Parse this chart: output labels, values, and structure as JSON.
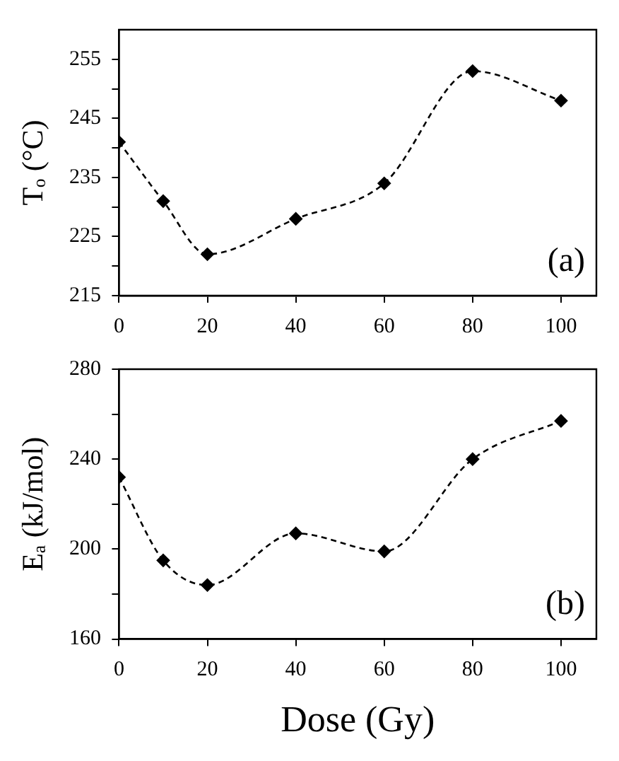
{
  "chart_data": [
    {
      "type": "line",
      "ylabel": "Tₒ (°C)",
      "annotations": [
        "(a)"
      ],
      "x": [
        0,
        10,
        20,
        40,
        60,
        80,
        100
      ],
      "xlim": [
        0,
        108
      ],
      "xticks": [
        0,
        20,
        40,
        60,
        80,
        100
      ],
      "ylim": [
        215,
        260
      ],
      "yticks": [
        215,
        {
          "value": 220,
          "label": null
        },
        225,
        {
          "value": 230,
          "label": null
        },
        235,
        {
          "value": 240,
          "label": null
        },
        245,
        {
          "value": 250,
          "label": null
        },
        255
      ],
      "series": [
        {
          "color": "#000000",
          "values": [
            241,
            231,
            222,
            228,
            234,
            253,
            248
          ]
        }
      ],
      "marker": "diamond",
      "line_style": "dashed",
      "grid": false,
      "legend": false
    },
    {
      "type": "line",
      "xlabel": "Dose (Gy)",
      "ylabel": "Eₐ (kJ/mol)",
      "annotations": [
        "(b)"
      ],
      "x": [
        0,
        10,
        20,
        40,
        60,
        80,
        100
      ],
      "xlim": [
        0,
        108
      ],
      "xticks": [
        0,
        20,
        40,
        60,
        80,
        100
      ],
      "ylim": [
        160,
        280
      ],
      "yticks": [
        160,
        {
          "value": 180,
          "label": null
        },
        200,
        {
          "value": 220,
          "label": null
        },
        240,
        {
          "value": 260,
          "label": null
        },
        280
      ],
      "series": [
        {
          "color": "#000000",
          "values": [
            232,
            195,
            184,
            207,
            199,
            240,
            257
          ]
        }
      ],
      "marker": "diamond",
      "line_style": "dashed",
      "grid": false,
      "legend": false
    }
  ]
}
